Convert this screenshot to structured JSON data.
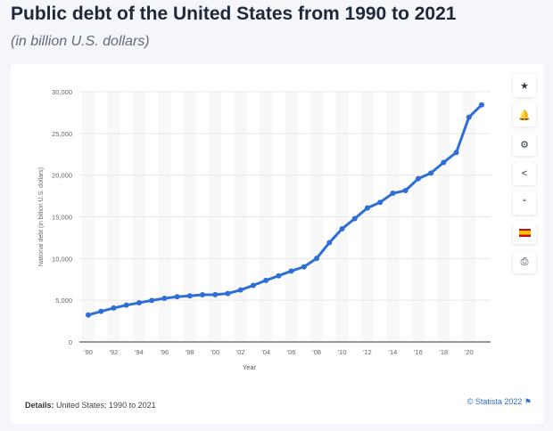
{
  "header": {
    "title": "Public debt of the United States from 1990 to 2021",
    "subtitle": "(in billion U.S. dollars)"
  },
  "footer": {
    "details_label": "Details:",
    "details_text": " United States; 1990 to 2021",
    "credit": "© Statista 2022 ⚑"
  },
  "tools": [
    {
      "icon": "star-icon",
      "glyph": "★"
    },
    {
      "icon": "bell-icon",
      "glyph": "🔔"
    },
    {
      "icon": "gear-icon",
      "glyph": "⚙"
    },
    {
      "icon": "share-icon",
      "glyph": "<"
    },
    {
      "icon": "quote-icon",
      "glyph": "“"
    },
    {
      "icon": "flag-spain-icon",
      "glyph": ""
    },
    {
      "icon": "print-icon",
      "glyph": "⎙"
    }
  ],
  "colors": {
    "line": "#2e6fd6"
  },
  "chart_data": {
    "type": "line",
    "title": "Public debt of the United States from 1990 to 2021",
    "xlabel": "Year",
    "ylabel": "National debt (in billion U.S. dollars)",
    "ylim": [
      0,
      30000
    ],
    "yticks": [
      0,
      5000,
      10000,
      15000,
      20000,
      25000,
      30000
    ],
    "ytick_labels": [
      "0",
      "5,000",
      "10,000",
      "15,000",
      "20,000",
      "25,000",
      "30,000"
    ],
    "xtick_labels": [
      "'90",
      "'92",
      "'94",
      "'96",
      "'98",
      "'00",
      "'02",
      "'04",
      "'06",
      "'08",
      "'10",
      "'12",
      "'14",
      "'16",
      "'18",
      "'20"
    ],
    "x": [
      1990,
      1991,
      1992,
      1993,
      1994,
      1995,
      1996,
      1997,
      1998,
      1999,
      2000,
      2001,
      2002,
      2003,
      2004,
      2005,
      2006,
      2007,
      2008,
      2009,
      2010,
      2011,
      2012,
      2013,
      2014,
      2015,
      2016,
      2017,
      2018,
      2019,
      2020,
      2021
    ],
    "series": [
      {
        "name": "National debt",
        "values": [
          3233,
          3665,
          4065,
          4411,
          4693,
          4974,
          5225,
          5413,
          5526,
          5656,
          5674,
          5807,
          6228,
          6783,
          7379,
          7933,
          8507,
          9008,
          10025,
          11910,
          13562,
          14790,
          16066,
          16738,
          17824,
          18151,
          19573,
          20245,
          21516,
          22719,
          26945,
          28429
        ]
      }
    ],
    "grid": true
  }
}
